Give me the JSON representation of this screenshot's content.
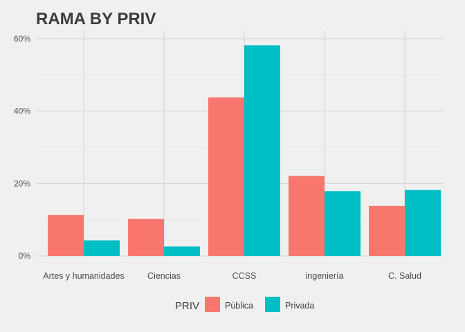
{
  "chart_data": {
    "type": "bar",
    "title": "RAMA BY PRIV",
    "categories": [
      "Artes y humanidades",
      "Ciencias",
      "CCSS",
      "ingeniería",
      "C. Salud"
    ],
    "series": [
      {
        "name": "Pública",
        "color": "#f8766d",
        "values": [
          11.3,
          10.2,
          43.8,
          22.1,
          13.8
        ]
      },
      {
        "name": "Privada",
        "color": "#00bfc4",
        "values": [
          4.3,
          2.6,
          58.2,
          17.9,
          18.2
        ]
      }
    ],
    "ylim": [
      0,
      60
    ],
    "yticks": [
      "0%",
      "20%",
      "40%",
      "60%"
    ],
    "ytick_values": [
      0,
      20,
      40,
      60
    ],
    "legend": {
      "title": "PRIV",
      "position": "bottom"
    },
    "grid": true
  }
}
